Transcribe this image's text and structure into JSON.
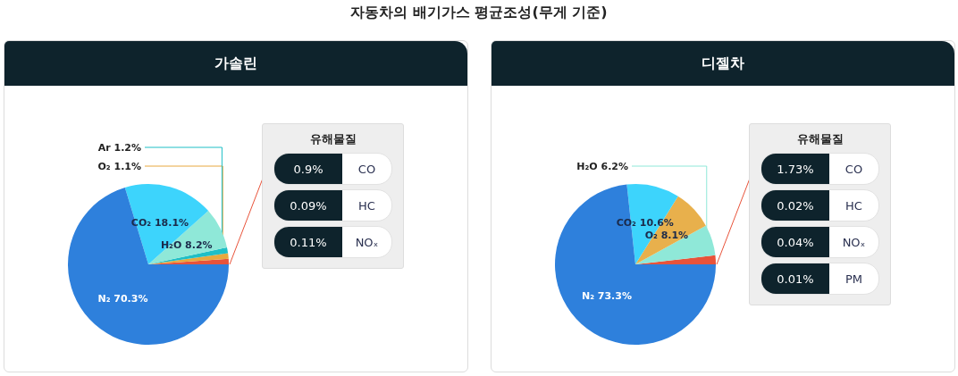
{
  "chart_data": [
    {
      "type": "pie",
      "title": "가솔린",
      "annotations": [
        "자동차의 배기가스 평균조성(무게 기준)"
      ],
      "categories": [
        null,
        "O₂",
        "Ar",
        "H₂O",
        "CO₂",
        "N₂"
      ],
      "values": [
        1.1,
        1.1,
        1.2,
        8.2,
        18.1,
        70.3
      ],
      "value_labels": [
        null,
        "1.1%",
        "1.2%",
        "8.2%",
        "18.1%",
        "70.3%"
      ],
      "colors": [
        "#e8533a",
        "#e8a93e",
        "#1fbfc6",
        "#8fe8d8",
        "#3dd4fc",
        "#2e80dc"
      ]
    },
    {
      "type": "other",
      "title": "유해물질",
      "categories": [
        "CO",
        "HC",
        "NOₓ"
      ],
      "values": [
        0.9,
        0.09,
        0.11
      ],
      "value_labels": [
        "0.9%",
        "0.09%",
        "0.11%"
      ]
    },
    {
      "type": "pie",
      "title": "디젤차",
      "categories": [
        null,
        "H₂O",
        "O₂",
        "CO₂",
        "N₂"
      ],
      "values": [
        1.8,
        6.2,
        8.1,
        10.6,
        73.3
      ],
      "value_labels": [
        null,
        "6.2%",
        "8.1%",
        "10.6%",
        "73.3%"
      ],
      "colors": [
        "#e8533a",
        "#8fe8d8",
        "#e8b04c",
        "#3dd4fc",
        "#2e80dc"
      ]
    },
    {
      "type": "other",
      "title": "유해물질",
      "categories": [
        "CO",
        "HC",
        "NOₓ",
        "PM"
      ],
      "values": [
        1.73,
        0.02,
        0.04,
        0.01
      ],
      "value_labels": [
        "1.73%",
        "0.02%",
        "0.04%",
        "0.01%"
      ]
    }
  ]
}
